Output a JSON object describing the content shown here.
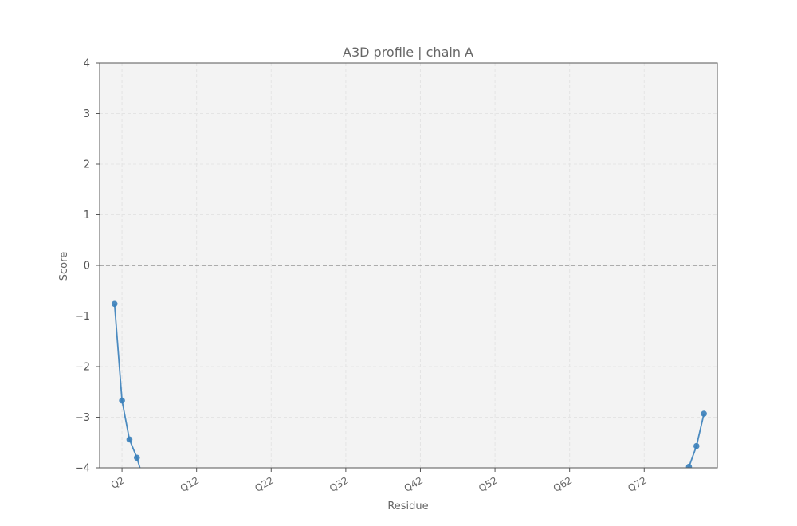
{
  "chart_data": {
    "type": "line",
    "title": "A3D profile | chain A",
    "xlabel": "Residue",
    "ylabel": "Score",
    "ylim": [
      -4,
      4
    ],
    "yticks": [
      4,
      3,
      2,
      1,
      0,
      -1,
      -2,
      -3,
      -4
    ],
    "ytick_labels": [
      "4",
      "3",
      "2",
      "1",
      "0",
      "−1",
      "−2",
      "−3",
      "−4"
    ],
    "xticks": [
      {
        "label": "Q2",
        "x": 2
      },
      {
        "label": "Q12",
        "x": 12
      },
      {
        "label": "Q22",
        "x": 22
      },
      {
        "label": "Q32",
        "x": 32
      },
      {
        "label": "Q42",
        "x": 42
      },
      {
        "label": "Q52",
        "x": 52
      },
      {
        "label": "Q62",
        "x": 62
      },
      {
        "label": "Q72",
        "x": 72
      }
    ],
    "xlim": [
      -1,
      81.8
    ],
    "grid": true,
    "reference_line": {
      "y": 0,
      "style": "dashed"
    },
    "series": [
      {
        "color": "#3a7fba",
        "points": [
          {
            "x": 1,
            "y": -0.76
          },
          {
            "x": 2,
            "y": -2.67
          },
          {
            "x": 3,
            "y": -3.44
          },
          {
            "x": 4,
            "y": -3.8
          },
          {
            "x": 5,
            "y": -4.3
          },
          {
            "x": 77,
            "y": -4.4
          },
          {
            "x": 78,
            "y": -3.98
          },
          {
            "x": 79,
            "y": -3.57
          },
          {
            "x": 80,
            "y": -2.93
          }
        ]
      }
    ]
  }
}
